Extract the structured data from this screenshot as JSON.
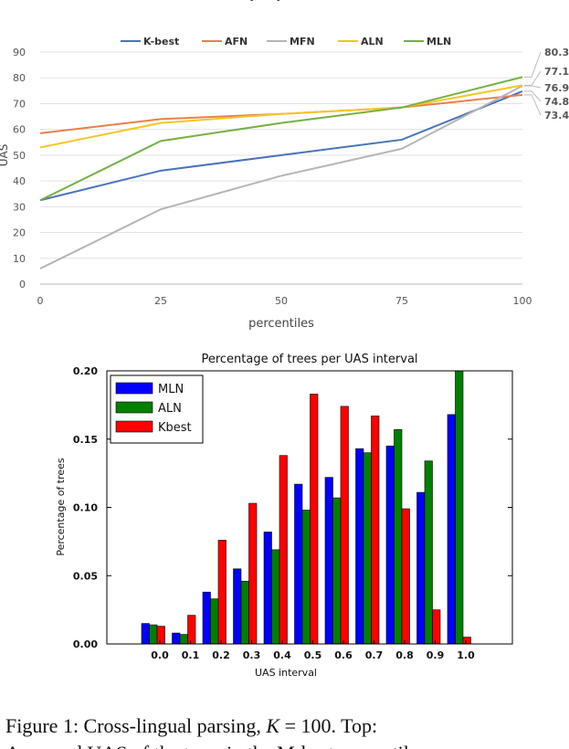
{
  "chart_data": [
    {
      "type": "line",
      "title": "UAS per percentile",
      "xlabel": "percentiles",
      "ylabel": "UAS",
      "x": [
        0,
        25,
        50,
        75,
        100
      ],
      "xticks": [
        "0",
        "25",
        "50",
        "75",
        "100"
      ],
      "yticks": [
        "0",
        "10",
        "20",
        "30",
        "40",
        "50",
        "60",
        "70",
        "80",
        "90"
      ],
      "xlim": [
        0,
        100
      ],
      "ylim": [
        0,
        90
      ],
      "grid": "horizontal",
      "legend": "top",
      "series": [
        {
          "name": "K-best",
          "color": "#4a74b8",
          "values": [
            32.5,
            44,
            50,
            56,
            74.8
          ]
        },
        {
          "name": "AFN",
          "color": "#e8804b",
          "values": [
            58.5,
            64,
            66,
            68.5,
            73.4
          ]
        },
        {
          "name": "MFN",
          "color": "#b5b5b5",
          "values": [
            6,
            29,
            42,
            52.5,
            76.9
          ]
        },
        {
          "name": "ALN",
          "color": "#f5c623",
          "values": [
            53,
            62.5,
            66,
            68.5,
            77.1
          ]
        },
        {
          "name": "MLN",
          "color": "#76b043",
          "values": [
            32.5,
            55.5,
            62.5,
            68.5,
            80.3
          ]
        }
      ],
      "end_labels": [
        "80.3",
        "77.1",
        "76.9",
        "74.8",
        "73.4"
      ]
    },
    {
      "type": "bar",
      "title": "Percentage of trees per UAS interval",
      "xlabel": "UAS interval",
      "ylabel": "Percentage of trees",
      "categories": [
        "0.0",
        "0.1",
        "0.2",
        "0.3",
        "0.4",
        "0.5",
        "0.6",
        "0.7",
        "0.8",
        "0.9",
        "1.0"
      ],
      "yticks": [
        "0.00",
        "0.05",
        "0.10",
        "0.15",
        "0.20"
      ],
      "ylim": [
        0,
        0.2
      ],
      "legend": "top-left",
      "series": [
        {
          "name": "MLN",
          "color": "#0000ff",
          "values": [
            0.015,
            0.008,
            0.038,
            0.055,
            0.082,
            0.117,
            0.122,
            0.143,
            0.145,
            0.111,
            0.168
          ]
        },
        {
          "name": "ALN",
          "color": "#007f00",
          "values": [
            0.014,
            0.007,
            0.033,
            0.046,
            0.069,
            0.098,
            0.107,
            0.14,
            0.157,
            0.134,
            0.2
          ]
        },
        {
          "name": "Kbest",
          "color": "#ff0000",
          "values": [
            0.013,
            0.021,
            0.076,
            0.103,
            0.138,
            0.183,
            0.174,
            0.167,
            0.099,
            0.025,
            0.005
          ]
        }
      ]
    }
  ],
  "caption": {
    "lead": "Figure 1: Cross-lingual parsing,",
    "k_var": "K",
    "eq": "= 100. Top:",
    "second_line": "Averaged UAS of the trees in the M-best percentiles"
  }
}
